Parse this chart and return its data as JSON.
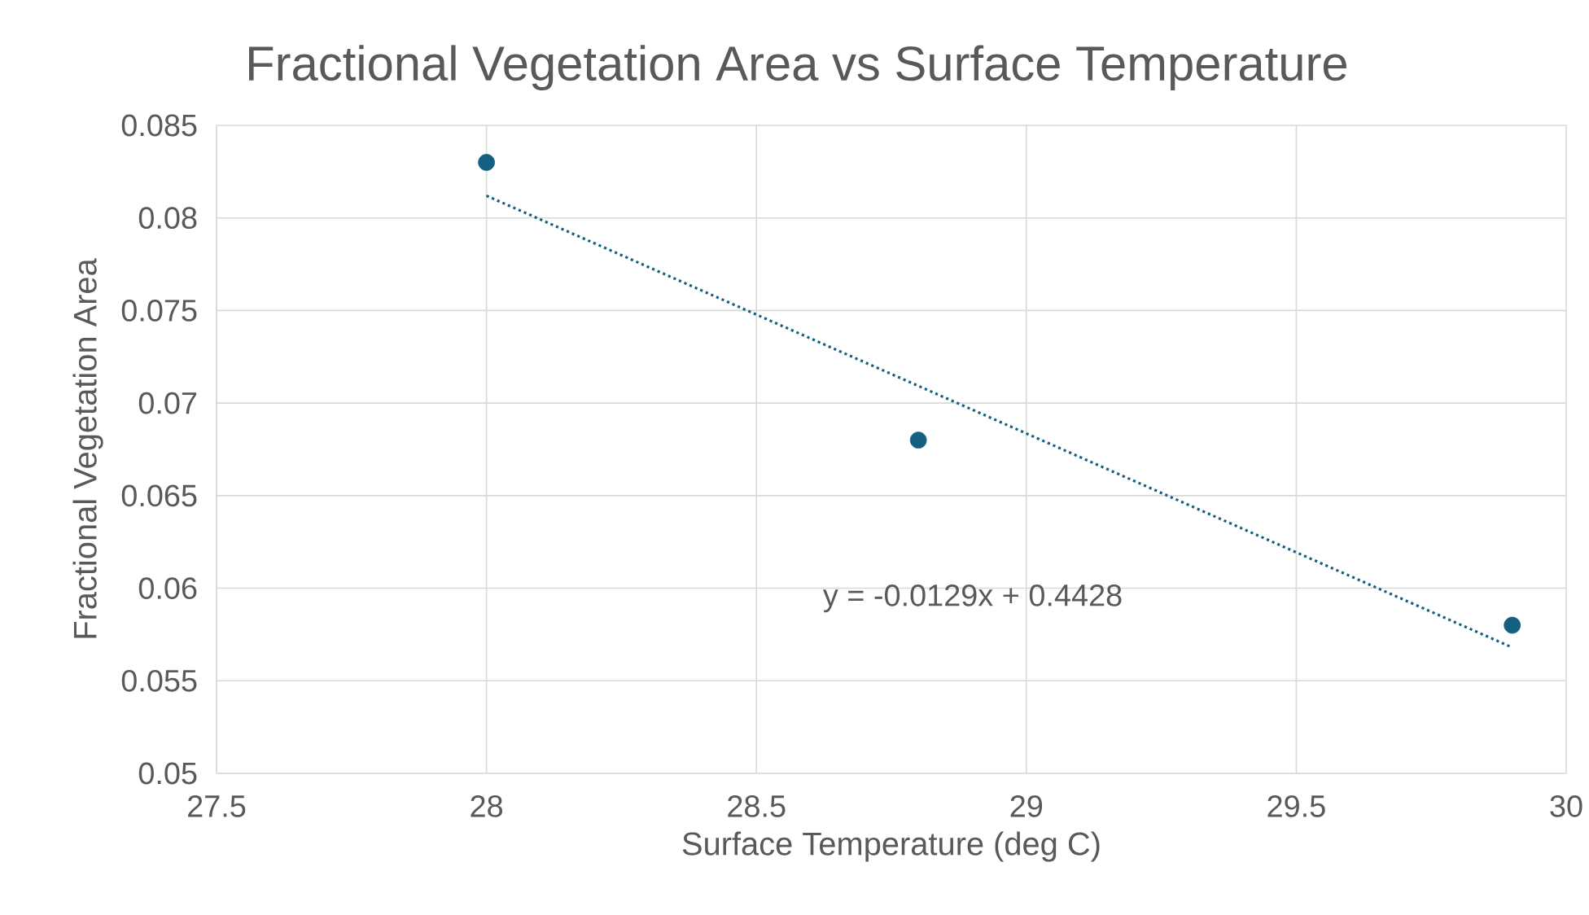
{
  "chart_data": {
    "type": "scatter",
    "title": "Fractional Vegetation Area vs Surface Temperature",
    "xlabel": "Surface Temperature (deg C)",
    "ylabel": "Fractional Vegetation Area",
    "annotations": [
      "y = -0.0129x + 0.4428"
    ],
    "series": [
      {
        "color": "#156082",
        "marker": "circle",
        "x": [
          28,
          28.8,
          29.9
        ],
        "values": [
          0.083,
          0.068,
          0.058
        ]
      },
      {
        "type": "line",
        "color": "#156082",
        "marker": "none",
        "line_style": "dotted",
        "x": [
          28,
          29.9
        ],
        "values": [
          0.0812,
          0.0568
        ]
      }
    ],
    "xlim": [
      27.5,
      30
    ],
    "xticks": [
      27.5,
      28,
      28.5,
      29,
      29.5,
      30
    ],
    "ylim": [
      0.05,
      0.085
    ],
    "yticks": [
      0.05,
      0.055,
      0.06,
      0.065,
      0.07,
      0.075,
      0.08,
      0.085
    ],
    "grid": true
  }
}
